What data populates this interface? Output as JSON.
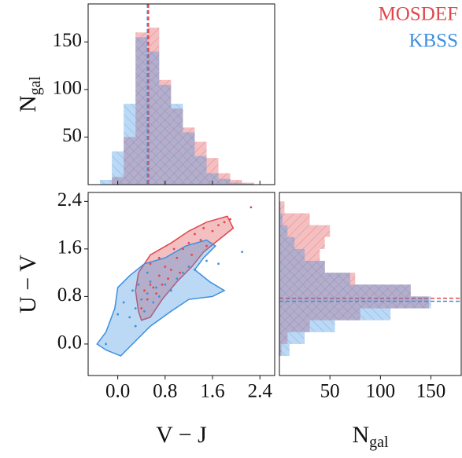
{
  "chart_data": [
    {
      "type": "histogram",
      "orientation": "vertical",
      "ylabel_main": "N",
      "ylabel_sub": "gal",
      "bins": [
        -0.3,
        -0.1,
        0.1,
        0.3,
        0.5,
        0.7,
        0.9,
        1.1,
        1.3,
        1.5,
        1.7,
        1.9,
        2.1,
        2.3
      ],
      "xlim": [
        -0.5,
        2.65
      ],
      "ylim": [
        0,
        190
      ],
      "yticks": [
        50,
        100,
        150
      ],
      "series": [
        {
          "name": "MOSDEF",
          "color": "#e0474c",
          "values": [
            0,
            8,
            50,
            160,
            165,
            110,
            80,
            60,
            45,
            28,
            12,
            5,
            2
          ],
          "median": 0.52
        },
        {
          "name": "KBSS",
          "color": "#3d8fe0",
          "values": [
            5,
            35,
            85,
            155,
            140,
            105,
            85,
            55,
            30,
            12,
            6,
            2,
            1
          ],
          "median": 0.5
        }
      ]
    },
    {
      "type": "scatter",
      "xlabel": "V − J",
      "ylabel": "U − V",
      "xlim": [
        -0.5,
        2.65
      ],
      "ylim": [
        -0.53,
        2.55
      ],
      "xticks": [
        {
          "value": 0,
          "label": "0.0"
        },
        0.8,
        1.6,
        2.4
      ],
      "yticks": [
        {
          "value": 0,
          "label": "0.0"
        },
        0.8,
        1.6,
        2.4
      ],
      "series": [
        {
          "color": "#e0474c",
          "x": [
            0.4,
            0.45,
            0.5,
            0.55,
            0.6,
            0.65,
            0.7,
            0.75,
            0.8,
            0.85,
            0.9,
            1.0,
            1.05,
            1.1,
            1.2,
            1.25,
            1.3,
            1.4,
            1.45,
            1.5,
            1.6,
            1.7,
            1.8,
            1.9,
            2.25,
            0.55,
            0.7,
            0.95
          ],
          "y": [
            0.6,
            0.9,
            0.75,
            1.0,
            0.95,
            0.85,
            1.15,
            1.0,
            1.3,
            1.1,
            1.25,
            1.45,
            1.2,
            1.6,
            1.7,
            1.5,
            1.85,
            1.75,
            1.95,
            1.65,
            1.9,
            2.0,
            2.05,
            2.1,
            2.3,
            1.35,
            1.45,
            1.6
          ],
          "contour_x": [
            0.35,
            0.3,
            0.35,
            0.55,
            0.9,
            1.2,
            1.5,
            1.85,
            1.95,
            1.7,
            1.45,
            1.25,
            1.0,
            0.75,
            0.55,
            0.4
          ],
          "contour_y": [
            0.55,
            0.9,
            1.2,
            1.5,
            1.7,
            1.9,
            2.05,
            2.15,
            1.95,
            1.75,
            1.55,
            1.3,
            1.05,
            0.75,
            0.45,
            0.4
          ]
        },
        {
          "color": "#3d8fe0",
          "x": [
            -0.2,
            0.0,
            0.1,
            0.2,
            0.25,
            0.3,
            0.35,
            0.4,
            0.45,
            0.5,
            0.55,
            0.6,
            0.65,
            0.7,
            0.8,
            0.9,
            1.0,
            1.1,
            1.2,
            1.3,
            1.5,
            1.7,
            2.1,
            0.3,
            0.5
          ],
          "y": [
            0.0,
            0.5,
            0.7,
            0.45,
            0.9,
            0.6,
            1.0,
            0.75,
            0.55,
            0.85,
            1.05,
            0.7,
            0.95,
            0.8,
            1.0,
            0.9,
            1.1,
            1.2,
            1.3,
            1.25,
            1.4,
            1.35,
            1.55,
            0.3,
            1.2
          ],
          "contour_x": [
            -0.35,
            -0.2,
            -0.05,
            0.0,
            0.2,
            0.45,
            0.8,
            1.15,
            1.5,
            1.65,
            1.45,
            1.3,
            1.55,
            1.8,
            1.6,
            1.2,
            0.9,
            0.55,
            0.3,
            0.05,
            -0.2
          ],
          "contour_y": [
            0.0,
            0.2,
            0.6,
            0.95,
            1.15,
            1.35,
            1.45,
            1.65,
            1.75,
            1.65,
            1.45,
            1.25,
            1.05,
            0.9,
            0.8,
            0.75,
            0.55,
            0.3,
            0.05,
            -0.2,
            -0.1
          ]
        }
      ]
    },
    {
      "type": "histogram",
      "orientation": "horizontal",
      "xlabel_main": "N",
      "xlabel_sub": "gal",
      "bins": [
        -0.2,
        0.0,
        0.2,
        0.4,
        0.6,
        0.8,
        1.0,
        1.2,
        1.4,
        1.6,
        1.8,
        2.0,
        2.2,
        2.4
      ],
      "ylim": [
        -0.53,
        2.55
      ],
      "xlim": [
        0,
        180
      ],
      "xticks": [
        50,
        100,
        150
      ],
      "series": [
        {
          "color": "#e0474c",
          "values": [
            2,
            8,
            30,
            80,
            148,
            130,
            75,
            45,
            40,
            45,
            50,
            30,
            5
          ],
          "median": 0.77
        },
        {
          "color": "#3d8fe0",
          "values": [
            10,
            25,
            55,
            110,
            150,
            130,
            70,
            45,
            25,
            15,
            8,
            3,
            1
          ],
          "median": 0.72
        }
      ]
    }
  ]
}
